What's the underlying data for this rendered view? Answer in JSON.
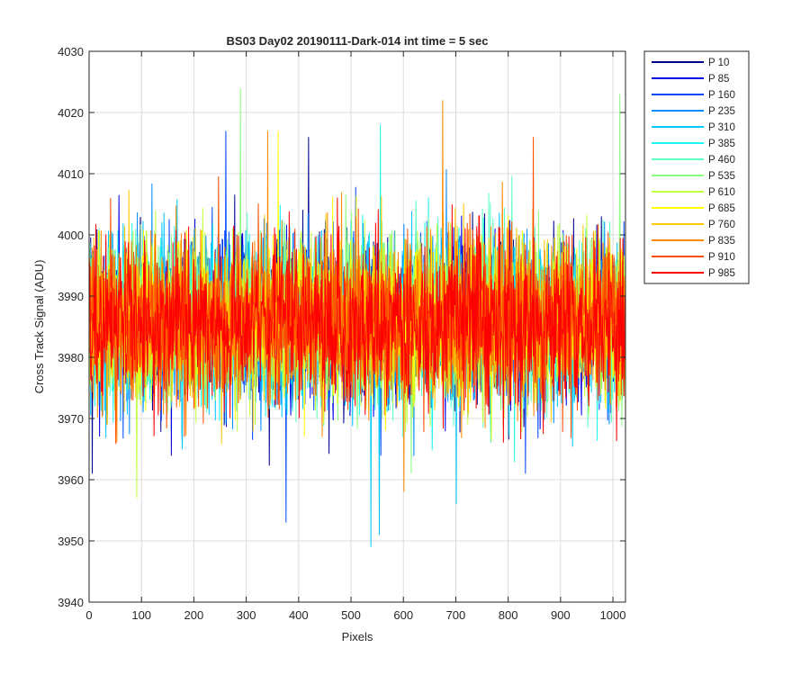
{
  "chart_data": {
    "type": "line",
    "title": "BS03 Day02 20190111-Dark-014 int time = 5 sec",
    "xlabel": "Pixels",
    "ylabel": "Cross Track Signal (ADU)",
    "xlim": [
      0,
      1024
    ],
    "ylim": [
      3940,
      4030
    ],
    "xticks": [
      0,
      100,
      200,
      300,
      400,
      500,
      600,
      700,
      800,
      900,
      1000
    ],
    "yticks": [
      3940,
      3950,
      3960,
      3970,
      3980,
      3990,
      4000,
      4010,
      4020,
      4030
    ],
    "grid": true,
    "legend_position": "outside-top-right",
    "points_per_series": 1024,
    "noise_center": 3986,
    "noise_sd": 6.5,
    "series": [
      {
        "name": "P 10",
        "color": "#00008f"
      },
      {
        "name": "P 85",
        "color": "#0000e6"
      },
      {
        "name": "P 160",
        "color": "#0047ff"
      },
      {
        "name": "P 235",
        "color": "#008cff"
      },
      {
        "name": "P 310",
        "color": "#00c8ff"
      },
      {
        "name": "P 385",
        "color": "#1cf5f0"
      },
      {
        "name": "P 460",
        "color": "#5effc0"
      },
      {
        "name": "P 535",
        "color": "#8aff80"
      },
      {
        "name": "P 610",
        "color": "#c2ff3d"
      },
      {
        "name": "P 685",
        "color": "#ffff00"
      },
      {
        "name": "P 760",
        "color": "#ffc800"
      },
      {
        "name": "P 835",
        "color": "#ff8a00"
      },
      {
        "name": "P 910",
        "color": "#ff4d00"
      },
      {
        "name": "P 985",
        "color": "#ff0000"
      }
    ],
    "extremes": [
      {
        "series": "P 535",
        "x": 288,
        "y": 4024
      },
      {
        "series": "P 535",
        "x": 1012,
        "y": 4023
      },
      {
        "series": "P 835",
        "x": 674,
        "y": 4022
      },
      {
        "series": "P 385",
        "x": 555,
        "y": 4018
      },
      {
        "series": "P 160",
        "x": 260,
        "y": 4017
      },
      {
        "series": "P 685",
        "x": 360,
        "y": 4017
      },
      {
        "series": "P 835",
        "x": 340,
        "y": 4017
      },
      {
        "series": "P 10",
        "x": 418,
        "y": 4016
      },
      {
        "series": "P 910",
        "x": 847,
        "y": 4016
      },
      {
        "series": "P 310",
        "x": 537,
        "y": 3949
      },
      {
        "series": "P 310",
        "x": 553,
        "y": 3951
      },
      {
        "series": "P 160",
        "x": 375,
        "y": 3953
      },
      {
        "series": "P 610",
        "x": 90,
        "y": 3957
      },
      {
        "series": "P 835",
        "x": 600,
        "y": 3958
      },
      {
        "series": "P 310",
        "x": 700,
        "y": 3956
      }
    ]
  }
}
